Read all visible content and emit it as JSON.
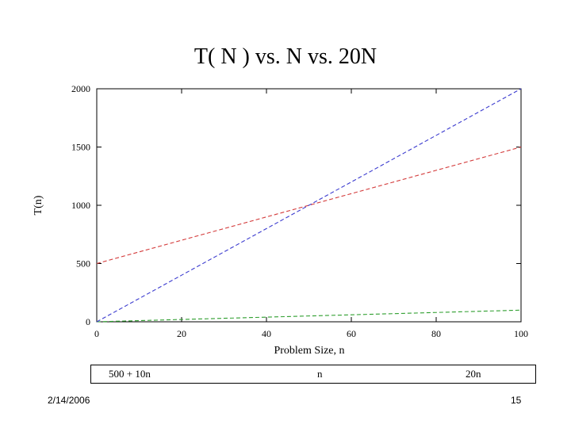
{
  "slide": {
    "title": "T( N ) vs. N vs. 20N",
    "date": "2/14/2006",
    "page_number": "15"
  },
  "chart_data": {
    "type": "line",
    "xlabel": "Problem Size, n",
    "ylabel": "T(n)",
    "xlim": [
      0,
      100
    ],
    "ylim": [
      0,
      2000
    ],
    "xticks": [
      0,
      20,
      40,
      60,
      80,
      100
    ],
    "yticks": [
      0,
      500,
      1000,
      1500,
      2000
    ],
    "grid": false,
    "legend_position": "bottom",
    "series": [
      {
        "name": "500 + 10n",
        "color": "#d43c3c",
        "x": [
          0,
          20,
          40,
          60,
          80,
          100
        ],
        "y": [
          500,
          700,
          900,
          1100,
          1300,
          1500
        ]
      },
      {
        "name": "n",
        "color": "#2e9e2e",
        "x": [
          0,
          20,
          40,
          60,
          80,
          100
        ],
        "y": [
          0,
          20,
          40,
          60,
          80,
          100
        ]
      },
      {
        "name": "20n",
        "color": "#3b3bcf",
        "x": [
          0,
          20,
          40,
          60,
          80,
          100
        ],
        "y": [
          0,
          400,
          800,
          1200,
          1600,
          2000
        ]
      }
    ]
  }
}
